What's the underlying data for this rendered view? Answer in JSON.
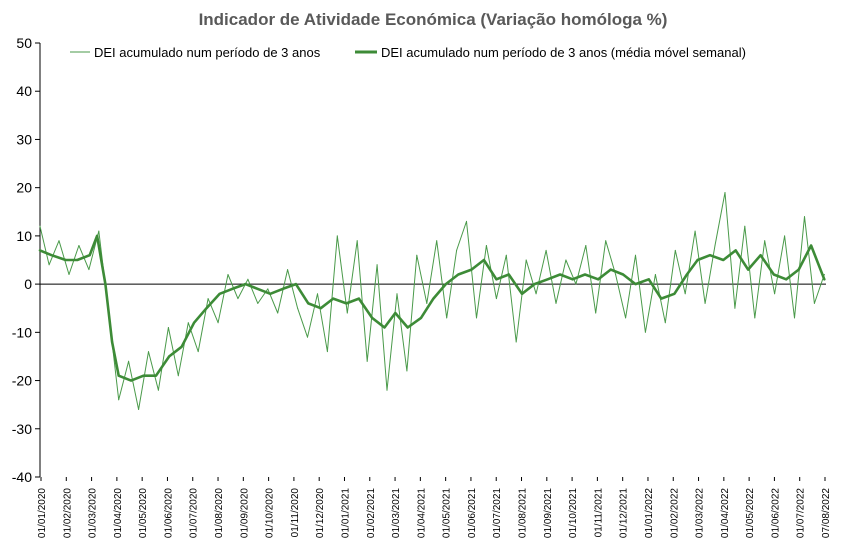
{
  "chart_data": {
    "type": "line",
    "title": "Indicador de Atividade Económica (Variação homóloga %)",
    "ylim": [
      -40,
      50
    ],
    "yticks": [
      -40,
      -30,
      -20,
      -10,
      0,
      10,
      20,
      30,
      40,
      50
    ],
    "grid": false,
    "legend_position": "top",
    "x_tick_labels": [
      "01/01/2020",
      "01/02/2020",
      "01/03/2020",
      "01/04/2020",
      "01/05/2020",
      "01/06/2020",
      "01/07/2020",
      "01/08/2020",
      "01/09/2020",
      "01/10/2020",
      "01/11/2020",
      "01/12/2020",
      "01/01/2021",
      "01/02/2021",
      "01/03/2021",
      "01/04/2021",
      "01/05/2021",
      "01/06/2021",
      "01/07/2021",
      "01/08/2021",
      "01/09/2021",
      "01/10/2021",
      "01/11/2021",
      "01/12/2021",
      "01/01/2022",
      "01/02/2022",
      "01/03/2022",
      "01/04/2022",
      "01/05/2022",
      "01/06/2022",
      "01/07/2022",
      "07/08/2022"
    ],
    "x_start": "2020-01-01",
    "x_end": "2022-08-07",
    "series": [
      {
        "name": "DEI acumulado num período de 3 anos",
        "color": "#4a9a4a",
        "style": "thin",
        "x": [
          "2020-01-01",
          "2020-01-12",
          "2020-01-24",
          "2020-02-05",
          "2020-02-17",
          "2020-02-29",
          "2020-03-12",
          "2020-03-24",
          "2020-04-05",
          "2020-04-17",
          "2020-04-29",
          "2020-05-11",
          "2020-05-23",
          "2020-06-04",
          "2020-06-16",
          "2020-06-28",
          "2020-07-10",
          "2020-07-22",
          "2020-08-03",
          "2020-08-15",
          "2020-08-27",
          "2020-09-08",
          "2020-09-20",
          "2020-10-02",
          "2020-10-14",
          "2020-10-26",
          "2020-11-07",
          "2020-11-19",
          "2020-12-01",
          "2020-12-13",
          "2020-12-25",
          "2021-01-06",
          "2021-01-18",
          "2021-01-30",
          "2021-02-11",
          "2021-02-23",
          "2021-03-07",
          "2021-03-19",
          "2021-03-31",
          "2021-04-12",
          "2021-04-24",
          "2021-05-06",
          "2021-05-18",
          "2021-05-30",
          "2021-06-11",
          "2021-06-23",
          "2021-07-05",
          "2021-07-17",
          "2021-07-29",
          "2021-08-10",
          "2021-08-22",
          "2021-09-03",
          "2021-09-15",
          "2021-09-27",
          "2021-10-09",
          "2021-10-21",
          "2021-11-02",
          "2021-11-14",
          "2021-11-26",
          "2021-12-08",
          "2021-12-20",
          "2022-01-01",
          "2022-01-13",
          "2022-01-25",
          "2022-02-06",
          "2022-02-18",
          "2022-03-02",
          "2022-03-14",
          "2022-03-26",
          "2022-04-07",
          "2022-04-19",
          "2022-05-01",
          "2022-05-13",
          "2022-05-25",
          "2022-06-06",
          "2022-06-18",
          "2022-06-30",
          "2022-07-12",
          "2022-07-24",
          "2022-08-05"
        ],
        "values": [
          12,
          4,
          9,
          2,
          8,
          3,
          11,
          -6,
          -24,
          -16,
          -26,
          -14,
          -22,
          -9,
          -19,
          -8,
          -14,
          -3,
          -8,
          2,
          -3,
          1,
          -4,
          -1,
          -6,
          3,
          -5,
          -11,
          -2,
          -14,
          10,
          -6,
          9,
          -16,
          4,
          -22,
          -2,
          -18,
          6,
          -4,
          9,
          -7,
          7,
          13,
          -7,
          8,
          -3,
          6,
          -12,
          5,
          -2,
          7,
          -4,
          5,
          0,
          8,
          -6,
          9,
          2,
          -7,
          6,
          -10,
          2,
          -8,
          7,
          -2,
          11,
          -4,
          8,
          19,
          -5,
          12,
          -7,
          9,
          -2,
          10,
          -7,
          14,
          -4,
          2
        ]
      },
      {
        "name": "DEI acumulado num período de 3 anos (média móvel semanal)",
        "color": "#3d8b37",
        "style": "thick",
        "x": [
          "2020-01-01",
          "2020-01-15",
          "2020-02-01",
          "2020-02-15",
          "2020-03-01",
          "2020-03-10",
          "2020-03-20",
          "2020-03-28",
          "2020-04-05",
          "2020-04-20",
          "2020-05-05",
          "2020-05-20",
          "2020-06-05",
          "2020-06-20",
          "2020-07-05",
          "2020-07-20",
          "2020-08-05",
          "2020-08-20",
          "2020-09-05",
          "2020-09-20",
          "2020-10-05",
          "2020-10-20",
          "2020-11-05",
          "2020-11-20",
          "2020-12-05",
          "2020-12-20",
          "2021-01-05",
          "2021-01-20",
          "2021-02-05",
          "2021-02-20",
          "2021-03-05",
          "2021-03-20",
          "2021-04-05",
          "2021-04-20",
          "2021-05-05",
          "2021-05-20",
          "2021-06-05",
          "2021-06-20",
          "2021-07-05",
          "2021-07-20",
          "2021-08-05",
          "2021-08-20",
          "2021-09-05",
          "2021-09-20",
          "2021-10-05",
          "2021-10-20",
          "2021-11-05",
          "2021-11-20",
          "2021-12-05",
          "2021-12-20",
          "2022-01-05",
          "2022-01-20",
          "2022-02-05",
          "2022-02-20",
          "2022-03-05",
          "2022-03-20",
          "2022-04-05",
          "2022-04-20",
          "2022-05-05",
          "2022-05-20",
          "2022-06-05",
          "2022-06-20",
          "2022-07-05",
          "2022-07-20",
          "2022-08-05"
        ],
        "values": [
          7,
          6,
          5,
          5,
          6,
          10,
          0,
          -12,
          -19,
          -20,
          -19,
          -19,
          -15,
          -13,
          -8,
          -5,
          -2,
          -1,
          0,
          -1,
          -2,
          -1,
          0,
          -4,
          -5,
          -3,
          -4,
          -3,
          -7,
          -9,
          -6,
          -9,
          -7,
          -3,
          0,
          2,
          3,
          5,
          1,
          2,
          -2,
          0,
          1,
          2,
          1,
          2,
          1,
          3,
          2,
          0,
          1,
          -3,
          -2,
          2,
          5,
          6,
          5,
          7,
          3,
          6,
          2,
          1,
          3,
          8,
          1
        ]
      }
    ]
  }
}
